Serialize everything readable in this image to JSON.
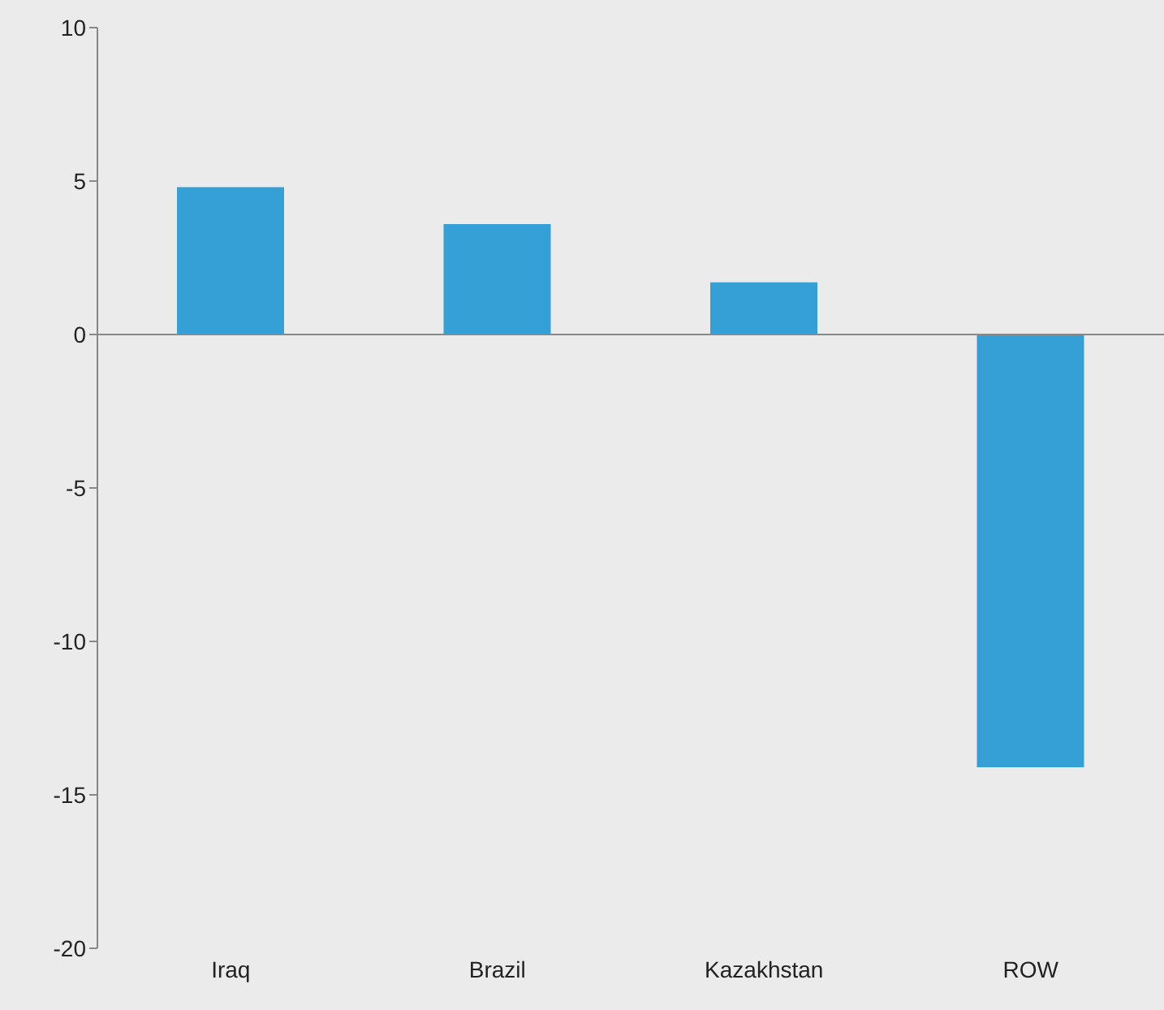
{
  "chart_data": {
    "type": "bar",
    "categories": [
      "Iraq",
      "Brazil",
      "Kazakhstan",
      "ROW"
    ],
    "values": [
      4.8,
      3.6,
      1.7,
      -14.1
    ],
    "color": "#35a0d6",
    "ylim": [
      -20,
      10
    ],
    "yticks": [
      -20,
      -15,
      -10,
      -5,
      0,
      5,
      10
    ]
  }
}
